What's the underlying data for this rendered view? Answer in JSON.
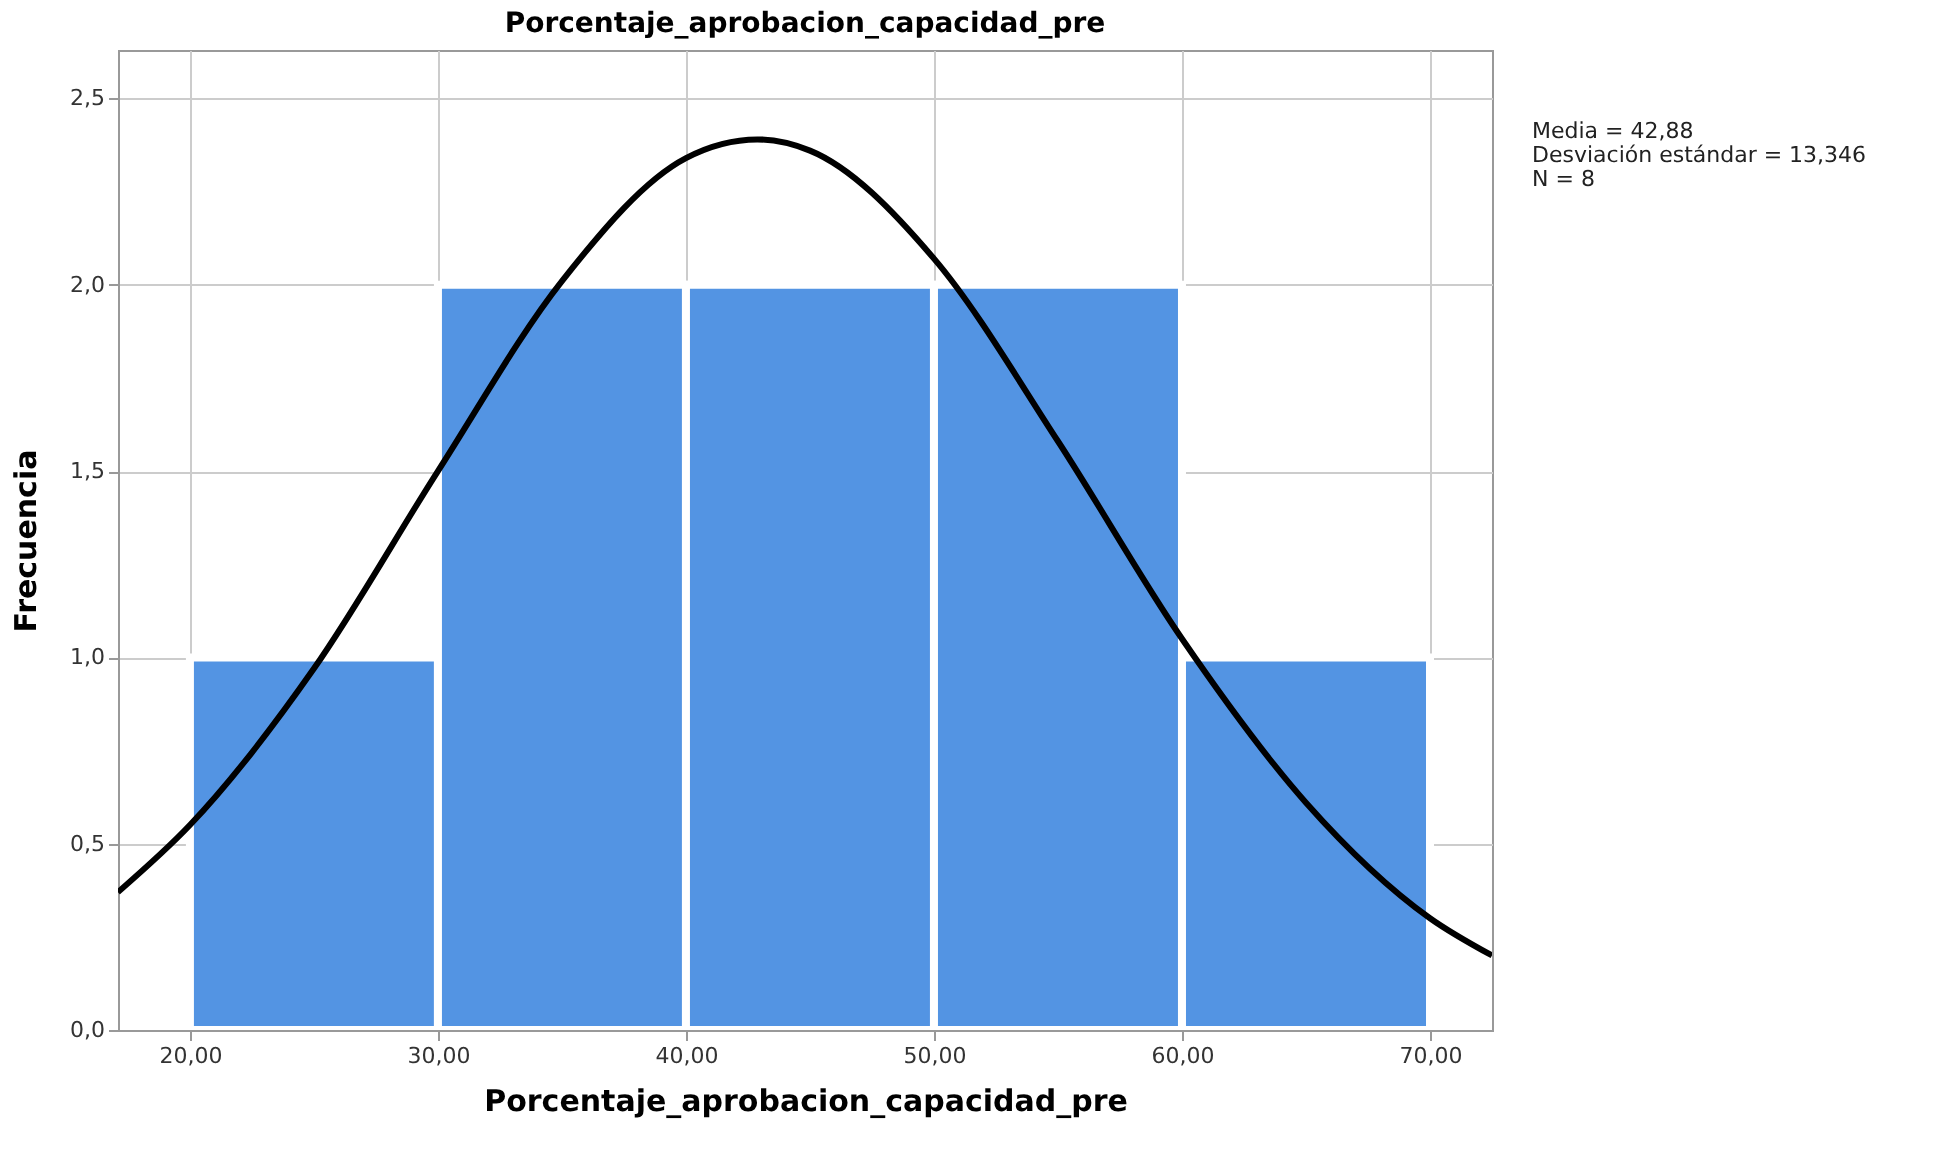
{
  "chart_data": {
    "type": "histogram",
    "title": "Porcentaje_aprobacion_capacidad_pre",
    "xlabel": "Porcentaje_aprobacion_capacidad_pre",
    "ylabel": "Frecuencia",
    "bins": [
      20,
      30,
      40,
      50,
      60,
      70
    ],
    "values": [
      1,
      2,
      2,
      2,
      1
    ],
    "color": "#5394e3",
    "series": [
      {
        "type": "line",
        "color": "#000000",
        "x": [
          17.1,
          20,
          25,
          30,
          35,
          40,
          42.88,
          45,
          50,
          55,
          60,
          65,
          70,
          72.5
        ],
        "values": [
          0.37,
          0.55,
          0.97,
          1.5,
          2.01,
          2.34,
          2.39,
          2.36,
          2.07,
          1.58,
          1.05,
          0.61,
          0.3,
          0.2
        ]
      }
    ],
    "xlim": [
      17.1,
      72.5
    ],
    "ylim": [
      0,
      2.63
    ],
    "xticks": [
      {
        "value": 20,
        "label": "20,00"
      },
      {
        "value": 30,
        "label": "30,00"
      },
      {
        "value": 40,
        "label": "40,00"
      },
      {
        "value": 50,
        "label": "50,00"
      },
      {
        "value": 60,
        "label": "60,00"
      },
      {
        "value": 70,
        "label": "70,00"
      }
    ],
    "yticks": [
      {
        "value": 0,
        "label": "0,0"
      },
      {
        "value": 0.5,
        "label": "0,5"
      },
      {
        "value": 1,
        "label": "1,0"
      },
      {
        "value": 1.5,
        "label": "1,5"
      },
      {
        "value": 2,
        "label": "2,0"
      },
      {
        "value": 2.5,
        "label": "2,5"
      }
    ],
    "grid": true,
    "annotations": [
      "Media = 42,88",
      "Desviación estándar = 13,346",
      "N = 8"
    ]
  }
}
